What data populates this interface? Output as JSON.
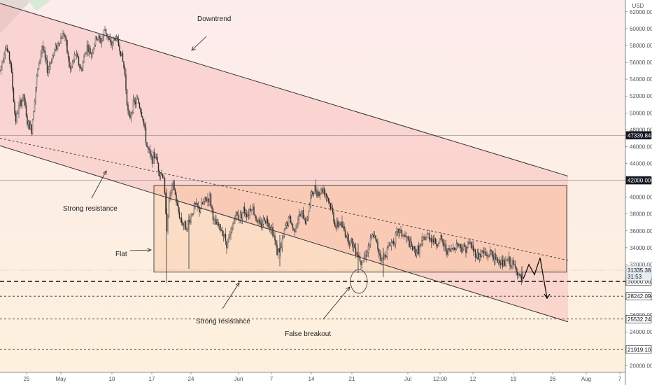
{
  "chart_data": {
    "type": "candlestick",
    "currency": "USD",
    "x_ticks": [
      "25",
      "May",
      "10",
      "17",
      "24",
      "Jun",
      "7",
      "14",
      "21",
      "Jul",
      "12:00",
      "12",
      "19",
      "26",
      "Aug",
      "7"
    ],
    "y_ticks": [
      20000,
      22000,
      24000,
      26000,
      28000,
      30000,
      32000,
      34000,
      36000,
      38000,
      40000,
      42000,
      44000,
      46000,
      48000,
      50000,
      52000,
      54000,
      56000,
      58000,
      60000,
      62000
    ],
    "y_tick_labels": [
      "20000.00",
      "22000.00",
      "24000.00",
      "26000.00",
      "28000.00",
      "30000.00",
      "32000.00",
      "34000.00",
      "36000.00",
      "38000.00",
      "40000.00",
      "42000.00",
      "44000.00",
      "46000.00",
      "48000.00",
      "50000.00",
      "52000.00",
      "54000.00",
      "56000.00",
      "58000.00",
      "60000.00",
      "62000.00"
    ],
    "ylim": [
      19200,
      63400
    ],
    "horizontal_levels": [
      {
        "value": 47339.84,
        "label": "47339.84",
        "style": "solid",
        "badge": "dark"
      },
      {
        "value": 42000.0,
        "label": "42000.00",
        "style": "solid",
        "badge": "dark"
      },
      {
        "value": 30000.0,
        "label": "30000.00",
        "style": "bold-dashed",
        "badge": "light"
      },
      {
        "value": 28242.09,
        "label": "28242.09",
        "style": "dashed",
        "badge": "light"
      },
      {
        "value": 25532.24,
        "label": "25532.24",
        "style": "dashed",
        "badge": "light"
      },
      {
        "value": 21919.1,
        "label": "21919.10",
        "style": "dashed",
        "badge": "light"
      }
    ],
    "last_price": {
      "value": 31335.38,
      "label": "31335.38",
      "countdown": "31:53"
    },
    "series_path": [
      [
        0,
        55000
      ],
      [
        8,
        58000
      ],
      [
        15,
        56000
      ],
      [
        22,
        49000
      ],
      [
        28,
        51000
      ],
      [
        34,
        52000
      ],
      [
        38,
        49000
      ],
      [
        45,
        48000
      ],
      [
        52,
        54000
      ],
      [
        60,
        58000
      ],
      [
        68,
        55000
      ],
      [
        76,
        57000
      ],
      [
        84,
        58500
      ],
      [
        92,
        59500
      ],
      [
        100,
        55000
      ],
      [
        108,
        57000
      ],
      [
        116,
        55000
      ],
      [
        124,
        58000
      ],
      [
        130,
        57000
      ],
      [
        138,
        59000
      ],
      [
        145,
        58500
      ],
      [
        150,
        60000
      ],
      [
        158,
        58000
      ],
      [
        165,
        59000
      ],
      [
        172,
        57500
      ],
      [
        178,
        55000
      ],
      [
        184,
        49000
      ],
      [
        190,
        51000
      ],
      [
        197,
        51500
      ],
      [
        204,
        49500
      ],
      [
        210,
        46000
      ],
      [
        216,
        44500
      ],
      [
        222,
        45000
      ],
      [
        228,
        43000
      ],
      [
        234,
        42500
      ],
      [
        238,
        36000
      ],
      [
        242,
        40000
      ],
      [
        248,
        41500
      ],
      [
        254,
        38500
      ],
      [
        260,
        37000
      ],
      [
        266,
        36500
      ],
      [
        272,
        37500
      ],
      [
        278,
        39000
      ],
      [
        285,
        38500
      ],
      [
        292,
        39500
      ],
      [
        300,
        40000
      ],
      [
        306,
        37000
      ],
      [
        312,
        36500
      ],
      [
        318,
        36000
      ],
      [
        324,
        34500
      ],
      [
        330,
        35500
      ],
      [
        336,
        38000
      ],
      [
        342,
        37500
      ],
      [
        348,
        38500
      ],
      [
        354,
        38000
      ],
      [
        360,
        39000
      ],
      [
        366,
        37500
      ],
      [
        372,
        36500
      ],
      [
        378,
        37500
      ],
      [
        384,
        37000
      ],
      [
        390,
        36000
      ],
      [
        396,
        33500
      ],
      [
        402,
        34000
      ],
      [
        408,
        36500
      ],
      [
        414,
        37500
      ],
      [
        420,
        36000
      ],
      [
        426,
        37500
      ],
      [
        432,
        38000
      ],
      [
        438,
        37000
      ],
      [
        444,
        40000
      ],
      [
        450,
        41000
      ],
      [
        456,
        40500
      ],
      [
        462,
        41000
      ],
      [
        468,
        40000
      ],
      [
        474,
        38500
      ],
      [
        480,
        36500
      ],
      [
        486,
        37000
      ],
      [
        492,
        36000
      ],
      [
        498,
        35000
      ],
      [
        504,
        34500
      ],
      [
        510,
        33500
      ],
      [
        516,
        32500
      ],
      [
        522,
        33000
      ],
      [
        528,
        34500
      ],
      [
        534,
        35500
      ],
      [
        540,
        34000
      ],
      [
        546,
        32500
      ],
      [
        552,
        33500
      ],
      [
        558,
        34500
      ],
      [
        564,
        35000
      ],
      [
        570,
        36000
      ],
      [
        576,
        35500
      ],
      [
        582,
        35000
      ],
      [
        588,
        34000
      ],
      [
        594,
        33500
      ],
      [
        600,
        34000
      ],
      [
        606,
        35000
      ],
      [
        612,
        35500
      ],
      [
        618,
        35000
      ],
      [
        624,
        34500
      ],
      [
        630,
        35000
      ],
      [
        636,
        34000
      ],
      [
        642,
        33500
      ],
      [
        648,
        34000
      ],
      [
        654,
        34500
      ],
      [
        660,
        34000
      ],
      [
        666,
        34000
      ],
      [
        672,
        34500
      ],
      [
        678,
        33500
      ],
      [
        684,
        33000
      ],
      [
        690,
        33500
      ],
      [
        696,
        33000
      ],
      [
        702,
        33500
      ],
      [
        708,
        32500
      ],
      [
        714,
        32500
      ],
      [
        720,
        32000
      ],
      [
        726,
        32500
      ],
      [
        732,
        32000
      ],
      [
        738,
        31500
      ],
      [
        742,
        30500
      ],
      [
        746,
        30000
      ],
      [
        748,
        30200
      ]
    ],
    "series_wicks": [
      [
        238,
        29800,
        41000
      ],
      [
        270,
        31500,
        38000
      ],
      [
        400,
        31800,
        35500
      ],
      [
        512,
        31000,
        34500
      ],
      [
        548,
        30500,
        34000
      ],
      [
        746,
        29900,
        31800
      ]
    ],
    "channel": {
      "upper": [
        [
          0,
          63000
        ],
        [
          812,
          42500
        ]
      ],
      "lower": [
        [
          0,
          46100
        ],
        [
          812,
          25200
        ]
      ],
      "midline": [
        [
          0,
          47000
        ],
        [
          812,
          32500
        ]
      ]
    },
    "flat_box": {
      "x_range": [
        220,
        810
      ],
      "y_range": [
        31100,
        41400
      ]
    },
    "projection": [
      [
        748,
        30300
      ],
      [
        756,
        32000
      ],
      [
        764,
        30800
      ],
      [
        772,
        32800
      ],
      [
        782,
        28000
      ]
    ],
    "oval": {
      "center": [
        513,
        30000
      ],
      "rx": 12,
      "ry": 17
    },
    "annotations": [
      {
        "text": "Downtrend"
      },
      {
        "text": "Strong resistance"
      },
      {
        "text": "Flat"
      },
      {
        "text": "Strong resistance"
      },
      {
        "text": "False breakout"
      }
    ]
  }
}
